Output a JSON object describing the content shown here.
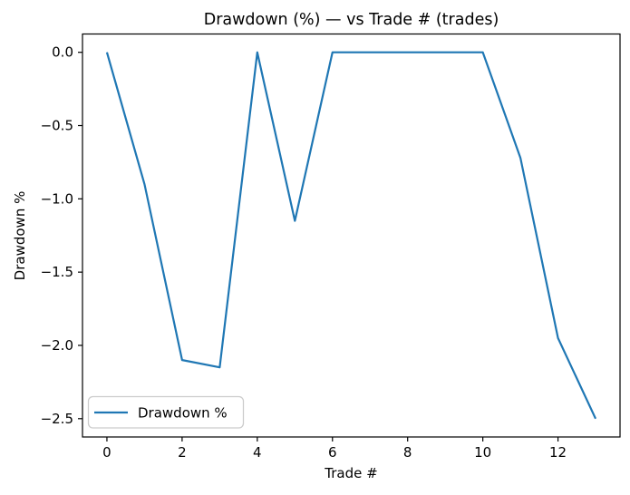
{
  "chart_data": {
    "type": "line",
    "title": "Drawdown (%) — vs Trade # (trades)",
    "xlabel": "Trade #",
    "ylabel": "Drawdown %",
    "x": [
      0,
      1,
      2,
      3,
      4,
      5,
      6,
      7,
      8,
      9,
      10,
      11,
      12,
      13
    ],
    "series": [
      {
        "name": "Drawdown %",
        "color": "#1f77b4",
        "values": [
          0.0,
          -0.9,
          -2.1,
          -2.15,
          0.0,
          -1.15,
          0.0,
          0.0,
          0.0,
          0.0,
          0.0,
          -0.72,
          -1.95,
          -2.5
        ]
      }
    ],
    "xticks": [
      0,
      2,
      4,
      6,
      8,
      10,
      12
    ],
    "yticks": [
      0.0,
      -0.5,
      -1.0,
      -1.5,
      -2.0,
      -2.5
    ],
    "xlim": [
      -0.65,
      13.65
    ],
    "ylim": [
      -2.625,
      0.125
    ],
    "grid": false,
    "legend_position": "lower left",
    "axis_color": "#000000",
    "background_color": "#ffffff"
  }
}
